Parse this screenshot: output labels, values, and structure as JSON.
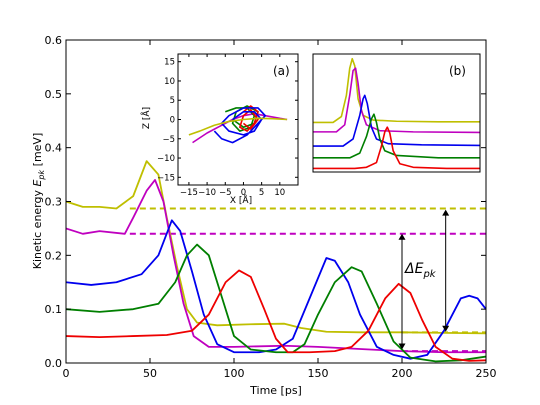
{
  "chart_data": [
    {
      "id": "main",
      "type": "line",
      "xlabel": "Time [ps]",
      "ylabel": "Kinetic energy E_pk [meV]",
      "ylabel_main": "Kinetic energy ",
      "ylabel_sym": "E",
      "ylabel_sub": "pk",
      "ylabel_unit": " [meV]",
      "xlim": [
        0,
        250
      ],
      "ylim": [
        0,
        0.6
      ],
      "xticks": [
        "0",
        "50",
        "100",
        "150",
        "200",
        "250"
      ],
      "yticks": [
        "0.0",
        "0.1",
        "0.2",
        "0.3",
        "0.4",
        "0.5",
        "0.6"
      ],
      "grid": false,
      "annotation": {
        "symbol": "ΔE",
        "sub": "pk"
      },
      "arrows": [
        {
          "x": 200,
          "y1": 0.025,
          "y2": 0.24
        },
        {
          "x": 226,
          "y1": 0.058,
          "y2": 0.285
        }
      ],
      "series": [
        {
          "color": "#bfbf00",
          "points": [
            [
              0,
              0.3
            ],
            [
              10,
              0.29
            ],
            [
              20,
              0.29
            ],
            [
              30,
              0.287
            ],
            [
              40,
              0.31
            ],
            [
              48,
              0.375
            ],
            [
              55,
              0.35
            ],
            [
              60,
              0.27
            ],
            [
              66,
              0.18
            ],
            [
              72,
              0.1
            ],
            [
              78,
              0.075
            ],
            [
              90,
              0.07
            ],
            [
              110,
              0.072
            ],
            [
              130,
              0.073
            ],
            [
              140,
              0.065
            ],
            [
              155,
              0.058
            ],
            [
              175,
              0.057
            ],
            [
              200,
              0.057
            ],
            [
              225,
              0.056
            ],
            [
              250,
              0.055
            ]
          ]
        },
        {
          "color": "#bf00bf",
          "points": [
            [
              0,
              0.25
            ],
            [
              10,
              0.24
            ],
            [
              20,
              0.245
            ],
            [
              35,
              0.24
            ],
            [
              40,
              0.27
            ],
            [
              48,
              0.32
            ],
            [
              53,
              0.34
            ],
            [
              58,
              0.3
            ],
            [
              64,
              0.2
            ],
            [
              70,
              0.11
            ],
            [
              76,
              0.05
            ],
            [
              85,
              0.03
            ],
            [
              100,
              0.03
            ],
            [
              130,
              0.032
            ],
            [
              150,
              0.03
            ],
            [
              175,
              0.026
            ],
            [
              200,
              0.022
            ],
            [
              225,
              0.02
            ],
            [
              250,
              0.02
            ]
          ]
        },
        {
          "color": "#0000ee",
          "points": [
            [
              0,
              0.15
            ],
            [
              15,
              0.145
            ],
            [
              30,
              0.15
            ],
            [
              45,
              0.165
            ],
            [
              55,
              0.2
            ],
            [
              63,
              0.265
            ],
            [
              68,
              0.245
            ],
            [
              75,
              0.17
            ],
            [
              82,
              0.09
            ],
            [
              90,
              0.035
            ],
            [
              100,
              0.02
            ],
            [
              115,
              0.02
            ],
            [
              125,
              0.025
            ],
            [
              135,
              0.045
            ],
            [
              145,
              0.12
            ],
            [
              155,
              0.195
            ],
            [
              160,
              0.19
            ],
            [
              168,
              0.15
            ],
            [
              175,
              0.09
            ],
            [
              185,
              0.03
            ],
            [
              195,
              0.015
            ],
            [
              205,
              0.008
            ],
            [
              215,
              0.015
            ],
            [
              225,
              0.06
            ],
            [
              235,
              0.12
            ],
            [
              240,
              0.125
            ],
            [
              245,
              0.12
            ],
            [
              250,
              0.1
            ]
          ]
        },
        {
          "color": "#007f00",
          "points": [
            [
              0,
              0.1
            ],
            [
              20,
              0.095
            ],
            [
              40,
              0.1
            ],
            [
              55,
              0.11
            ],
            [
              65,
              0.15
            ],
            [
              72,
              0.2
            ],
            [
              78,
              0.22
            ],
            [
              85,
              0.2
            ],
            [
              92,
              0.13
            ],
            [
              100,
              0.05
            ],
            [
              110,
              0.025
            ],
            [
              125,
              0.02
            ],
            [
              135,
              0.02
            ],
            [
              142,
              0.035
            ],
            [
              150,
              0.09
            ],
            [
              160,
              0.15
            ],
            [
              170,
              0.178
            ],
            [
              176,
              0.17
            ],
            [
              185,
              0.11
            ],
            [
              195,
              0.04
            ],
            [
              205,
              0.01
            ],
            [
              220,
              0.003
            ],
            [
              235,
              0.005
            ],
            [
              250,
              0.012
            ]
          ]
        },
        {
          "color": "#ee0000",
          "points": [
            [
              0,
              0.05
            ],
            [
              20,
              0.048
            ],
            [
              40,
              0.05
            ],
            [
              60,
              0.052
            ],
            [
              75,
              0.06
            ],
            [
              85,
              0.09
            ],
            [
              95,
              0.15
            ],
            [
              103,
              0.172
            ],
            [
              110,
              0.16
            ],
            [
              118,
              0.1
            ],
            [
              125,
              0.045
            ],
            [
              132,
              0.02
            ],
            [
              145,
              0.02
            ],
            [
              160,
              0.022
            ],
            [
              170,
              0.03
            ],
            [
              180,
              0.06
            ],
            [
              190,
              0.12
            ],
            [
              198,
              0.147
            ],
            [
              205,
              0.13
            ],
            [
              212,
              0.08
            ],
            [
              220,
              0.03
            ],
            [
              230,
              0.008
            ],
            [
              240,
              0.004
            ],
            [
              250,
              0.005
            ]
          ]
        }
      ],
      "dashed": [
        {
          "color": "#bfbf00",
          "x": [
            38,
            250
          ],
          "y": 0.287
        },
        {
          "color": "#bf00bf",
          "x": [
            38,
            250
          ],
          "y": 0.24
        },
        {
          "color": "#bfbf00",
          "x": [
            200,
            250
          ],
          "y": 0.057
        },
        {
          "color": "#bf00bf",
          "x": [
            200,
            250
          ],
          "y": 0.022
        }
      ]
    },
    {
      "id": "inset_a",
      "type": "line",
      "label": "(a)",
      "xlabel": "X [Å]",
      "ylabel": "Z [Å]",
      "xlim": [
        -18,
        15
      ],
      "ylim": [
        -17,
        17
      ],
      "xticks": [
        {
          "v": -15,
          "t": "−15"
        },
        {
          "v": -10,
          "t": "−10"
        },
        {
          "v": -5,
          "t": "−5"
        },
        {
          "v": 0,
          "t": "0"
        },
        {
          "v": 5,
          "t": "5"
        },
        {
          "v": 10,
          "t": "10"
        }
      ],
      "yticks": [
        {
          "v": 15,
          "t": "15"
        },
        {
          "v": 10,
          "t": "10"
        },
        {
          "v": 5,
          "t": "5"
        },
        {
          "v": 0,
          "t": "0"
        },
        {
          "v": -5,
          "t": "−5"
        },
        {
          "v": -10,
          "t": "−10"
        },
        {
          "v": -15,
          "t": "−15"
        }
      ],
      "series": [
        {
          "color": "#bf00bf",
          "points": [
            [
              -14,
              -6
            ],
            [
              -10,
              -3.5
            ],
            [
              -6,
              -1.5
            ],
            [
              -3,
              0
            ],
            [
              0,
              1
            ],
            [
              3,
              1.5
            ],
            [
              6,
              1
            ],
            [
              10,
              0.3
            ],
            [
              12,
              0
            ]
          ]
        },
        {
          "color": "#007f00",
          "points": [
            [
              -5,
              2
            ],
            [
              -2,
              3
            ],
            [
              1,
              3
            ],
            [
              3,
              1
            ],
            [
              2,
              -2
            ],
            [
              -1,
              -3
            ],
            [
              -3,
              -1
            ],
            [
              -2,
              2
            ],
            [
              1,
              3.5
            ],
            [
              4,
              2
            ],
            [
              3,
              -1
            ],
            [
              0,
              -2
            ],
            [
              -3,
              0
            ]
          ]
        },
        {
          "color": "#ee0000",
          "points": [
            [
              0,
              2
            ],
            [
              2,
              3.5
            ],
            [
              4,
              2
            ],
            [
              3,
              -1
            ],
            [
              1,
              -3
            ],
            [
              -1,
              -2
            ],
            [
              0,
              1
            ],
            [
              2,
              2.5
            ],
            [
              4,
              0
            ],
            [
              2,
              -2.5
            ],
            [
              0,
              -1
            ]
          ]
        },
        {
          "color": "#0000ee",
          "points": [
            [
              -8,
              -3
            ],
            [
              -6,
              -5
            ],
            [
              -3,
              -6
            ],
            [
              1,
              -4
            ],
            [
              4,
              -1
            ],
            [
              6,
              1
            ],
            [
              4,
              3
            ],
            [
              0,
              3
            ],
            [
              -4,
              1
            ],
            [
              -6,
              -1
            ],
            [
              -4,
              -3
            ],
            [
              0,
              -4
            ],
            [
              3,
              -3
            ],
            [
              5,
              0
            ],
            [
              3,
              2
            ],
            [
              0,
              2
            ],
            [
              -3,
              0
            ]
          ]
        },
        {
          "color": "#bfbf00",
          "points": [
            [
              -15,
              -4
            ],
            [
              -12,
              -3
            ],
            [
              -8,
              -1.5
            ],
            [
              -4,
              -0.5
            ],
            [
              0,
              0
            ],
            [
              4,
              0.3
            ],
            [
              8,
              0.2
            ],
            [
              12,
              0
            ]
          ]
        }
      ]
    },
    {
      "id": "inset_b",
      "type": "line",
      "label": "(b)",
      "x_span": [
        0,
        100
      ],
      "y_span": [
        0,
        100
      ],
      "series": [
        {
          "color": "#bfbf00",
          "points": [
            [
              0,
              42
            ],
            [
              12,
              42
            ],
            [
              17,
              47
            ],
            [
              20,
              65
            ],
            [
              22,
              88
            ],
            [
              23.5,
              96
            ],
            [
              25,
              90
            ],
            [
              27,
              62
            ],
            [
              30,
              48
            ],
            [
              36,
              44
            ],
            [
              50,
              43
            ],
            [
              75,
              42.5
            ],
            [
              100,
              42.5
            ]
          ]
        },
        {
          "color": "#bf00bf",
          "points": [
            [
              0,
              34
            ],
            [
              14,
              34
            ],
            [
              19,
              40
            ],
            [
              22,
              65
            ],
            [
              24,
              86
            ],
            [
              25.5,
              88
            ],
            [
              27,
              75
            ],
            [
              29,
              52
            ],
            [
              32,
              40
            ],
            [
              40,
              35
            ],
            [
              60,
              34
            ],
            [
              100,
              33.5
            ]
          ]
        },
        {
          "color": "#0000ee",
          "points": [
            [
              0,
              22
            ],
            [
              18,
              22
            ],
            [
              24,
              28
            ],
            [
              28,
              48
            ],
            [
              30,
              62
            ],
            [
              31,
              65
            ],
            [
              32.5,
              58
            ],
            [
              35,
              38
            ],
            [
              38,
              28
            ],
            [
              45,
              24
            ],
            [
              65,
              23
            ],
            [
              100,
              22.5
            ]
          ]
        },
        {
          "color": "#007f00",
          "points": [
            [
              0,
              12
            ],
            [
              22,
              12
            ],
            [
              28,
              16
            ],
            [
              32,
              30
            ],
            [
              35,
              45
            ],
            [
              36.5,
              49
            ],
            [
              38,
              42
            ],
            [
              40,
              28
            ],
            [
              43,
              18
            ],
            [
              50,
              14
            ],
            [
              75,
              12
            ],
            [
              100,
              12
            ]
          ]
        },
        {
          "color": "#ee0000",
          "points": [
            [
              0,
              3
            ],
            [
              25,
              3
            ],
            [
              32,
              4
            ],
            [
              38,
              8
            ],
            [
              41,
              22
            ],
            [
              43,
              34
            ],
            [
              44.5,
              38
            ],
            [
              46,
              33
            ],
            [
              48,
              18
            ],
            [
              52,
              7
            ],
            [
              60,
              4
            ],
            [
              80,
              3
            ],
            [
              100,
              3
            ]
          ]
        }
      ]
    }
  ]
}
